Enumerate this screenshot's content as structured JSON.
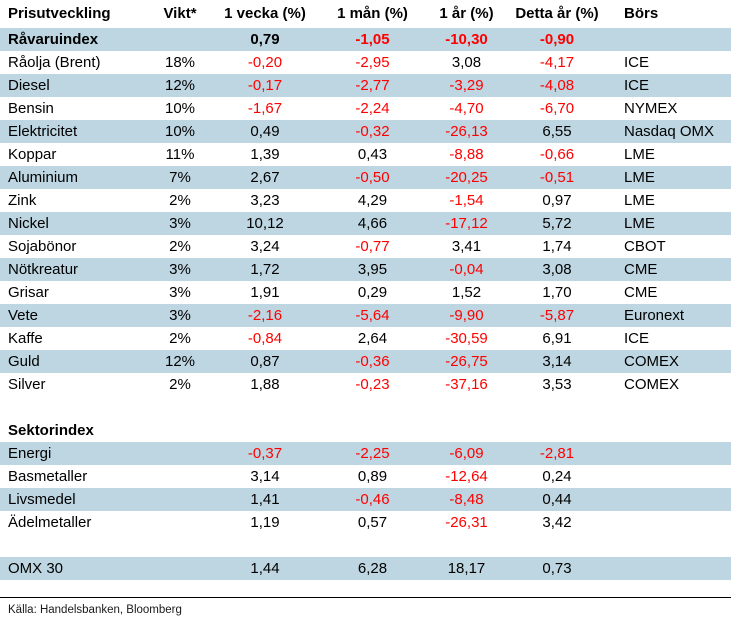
{
  "colors": {
    "stripe": "#bdd6e2",
    "negative": "#ff0000",
    "text": "#000000"
  },
  "table": {
    "header_keys": [
      "name",
      "weight",
      "week",
      "month",
      "year",
      "ytd",
      "exchange"
    ],
    "headers": [
      "Prisutveckling",
      "Vikt*",
      "1 vecka (%)",
      "1 mån (%)",
      "1 år (%)",
      "Detta år (%)",
      "Börs"
    ],
    "rows": [
      {
        "label": "Råvaruindex",
        "vikt": "",
        "v1w": "0,79",
        "v1m": "-1,05",
        "v1y": "-10,30",
        "ytd": "-0,90",
        "bors": "",
        "bold": true,
        "shaded": true
      },
      {
        "label": "Råolja (Brent)",
        "vikt": "18%",
        "v1w": "-0,20",
        "v1m": "-2,95",
        "v1y": "3,08",
        "ytd": "-4,17",
        "bors": "ICE",
        "shaded": false
      },
      {
        "label": "Diesel",
        "vikt": "12%",
        "v1w": "-0,17",
        "v1m": "-2,77",
        "v1y": "-3,29",
        "ytd": "-4,08",
        "bors": "ICE",
        "shaded": true
      },
      {
        "label": "Bensin",
        "vikt": "10%",
        "v1w": "-1,67",
        "v1m": "-2,24",
        "v1y": "-4,70",
        "ytd": "-6,70",
        "bors": "NYMEX",
        "shaded": false
      },
      {
        "label": "Elektricitet",
        "vikt": "10%",
        "v1w": "0,49",
        "v1m": "-0,32",
        "v1y": "-26,13",
        "ytd": "6,55",
        "bors": "Nasdaq OMX",
        "shaded": true
      },
      {
        "label": "Koppar",
        "vikt": "11%",
        "v1w": "1,39",
        "v1m": "0,43",
        "v1y": "-8,88",
        "ytd": "-0,66",
        "bors": "LME",
        "shaded": false
      },
      {
        "label": "Aluminium",
        "vikt": "7%",
        "v1w": "2,67",
        "v1m": "-0,50",
        "v1y": "-20,25",
        "ytd": "-0,51",
        "bors": "LME",
        "shaded": true
      },
      {
        "label": "Zink",
        "vikt": "2%",
        "v1w": "3,23",
        "v1m": "4,29",
        "v1y": "-1,54",
        "ytd": "0,97",
        "bors": "LME",
        "shaded": false
      },
      {
        "label": "Nickel",
        "vikt": "3%",
        "v1w": "10,12",
        "v1m": "4,66",
        "v1y": "-17,12",
        "ytd": "5,72",
        "bors": "LME",
        "shaded": true
      },
      {
        "label": "Sojabönor",
        "vikt": "2%",
        "v1w": "3,24",
        "v1m": "-0,77",
        "v1y": "3,41",
        "ytd": "1,74",
        "bors": "CBOT",
        "shaded": false
      },
      {
        "label": "Nötkreatur",
        "vikt": "3%",
        "v1w": "1,72",
        "v1m": "3,95",
        "v1y": "-0,04",
        "ytd": "3,08",
        "bors": "CME",
        "shaded": true
      },
      {
        "label": "Grisar",
        "vikt": "3%",
        "v1w": "1,91",
        "v1m": "0,29",
        "v1y": "1,52",
        "ytd": "1,70",
        "bors": "CME",
        "shaded": false
      },
      {
        "label": "Vete",
        "vikt": "3%",
        "v1w": "-2,16",
        "v1m": "-5,64",
        "v1y": "-9,90",
        "ytd": "-5,87",
        "bors": "Euronext",
        "shaded": true
      },
      {
        "label": "Kaffe",
        "vikt": "2%",
        "v1w": "-0,84",
        "v1m": "2,64",
        "v1y": "-30,59",
        "ytd": "6,91",
        "bors": "ICE",
        "shaded": false
      },
      {
        "label": "Guld",
        "vikt": "12%",
        "v1w": "0,87",
        "v1m": "-0,36",
        "v1y": "-26,75",
        "ytd": "3,14",
        "bors": "COMEX",
        "shaded": true
      },
      {
        "label": "Silver",
        "vikt": "2%",
        "v1w": "1,88",
        "v1m": "-0,23",
        "v1y": "-37,16",
        "ytd": "3,53",
        "bors": "COMEX",
        "shaded": false
      },
      {
        "label": "",
        "vikt": "",
        "v1w": "",
        "v1m": "",
        "v1y": "",
        "ytd": "",
        "bors": "",
        "blank": true,
        "shaded": false
      },
      {
        "label": "Sektorindex",
        "vikt": "",
        "v1w": "",
        "v1m": "",
        "v1y": "",
        "ytd": "",
        "bors": "",
        "bold": true,
        "section": true,
        "shaded": false
      },
      {
        "label": "Energi",
        "vikt": "",
        "v1w": "-0,37",
        "v1m": "-2,25",
        "v1y": "-6,09",
        "ytd": "-2,81",
        "bors": "",
        "shaded": true
      },
      {
        "label": "Basmetaller",
        "vikt": "",
        "v1w": "3,14",
        "v1m": "0,89",
        "v1y": "-12,64",
        "ytd": "0,24",
        "bors": "",
        "shaded": false
      },
      {
        "label": "Livsmedel",
        "vikt": "",
        "v1w": "1,41",
        "v1m": "-0,46",
        "v1y": "-8,48",
        "ytd": "0,44",
        "bors": "",
        "shaded": true
      },
      {
        "label": "Ädelmetaller",
        "vikt": "",
        "v1w": "1,19",
        "v1m": "0,57",
        "v1y": "-26,31",
        "ytd": "3,42",
        "bors": "",
        "shaded": false
      },
      {
        "label": "",
        "vikt": "",
        "v1w": "",
        "v1m": "",
        "v1y": "",
        "ytd": "",
        "bors": "",
        "blank": true,
        "shaded": false
      },
      {
        "label": "OMX 30",
        "vikt": "",
        "v1w": "1,44",
        "v1m": "6,28",
        "v1y": "18,17",
        "ytd": "0,73",
        "bors": "",
        "shaded": true
      }
    ]
  },
  "footer": {
    "source": "Källa: Handelsbanken, Bloomberg"
  }
}
